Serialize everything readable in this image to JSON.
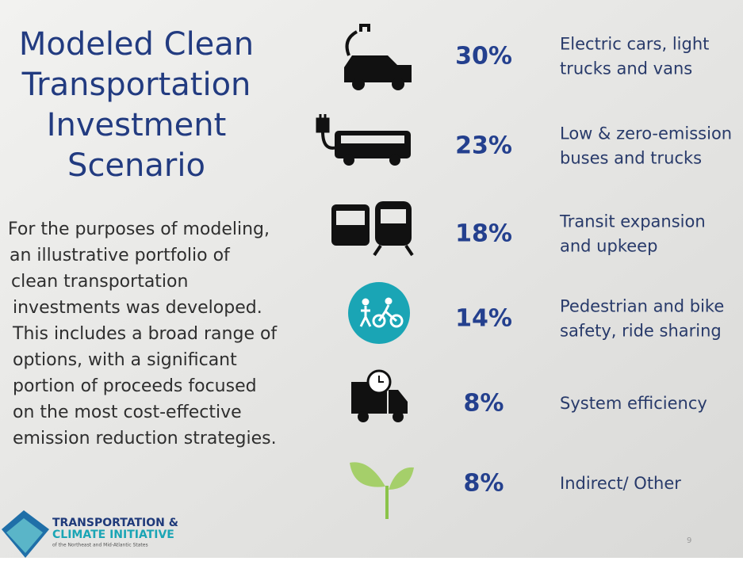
{
  "header": {
    "title": [
      "Modeled Clean",
      "Transportation",
      "Investment",
      "Scenario"
    ]
  },
  "body": [
    "For the purposes of modeling,",
    "an illustrative portfolio of",
    "clean transportation",
    "investments was developed.",
    "This includes a broad range of",
    "options, with a significant",
    "portion of proceeds focused",
    "on the most cost-effective",
    "emission reduction strategies."
  ],
  "items": [
    {
      "percent": "30%",
      "label": [
        "Electric cars, light",
        "trucks and vans"
      ]
    },
    {
      "percent": "23%",
      "label": [
        "Low & zero-emission",
        "buses and trucks"
      ]
    },
    {
      "percent": "18%",
      "label": [
        "Transit expansion",
        "and upkeep"
      ]
    },
    {
      "percent": "14%",
      "label": [
        "Pedestrian and bike",
        "safety, ride sharing"
      ]
    },
    {
      "percent": "8%",
      "label": [
        "System efficiency"
      ]
    },
    {
      "percent": "8%",
      "label": [
        "Indirect/ Other"
      ]
    }
  ],
  "logo": {
    "name": [
      "TRANSPORTATION &",
      "CLIMATE INITIATIVE"
    ],
    "tagline": "of the Northeast and Mid-Atlantic States"
  },
  "page_number": "9"
}
